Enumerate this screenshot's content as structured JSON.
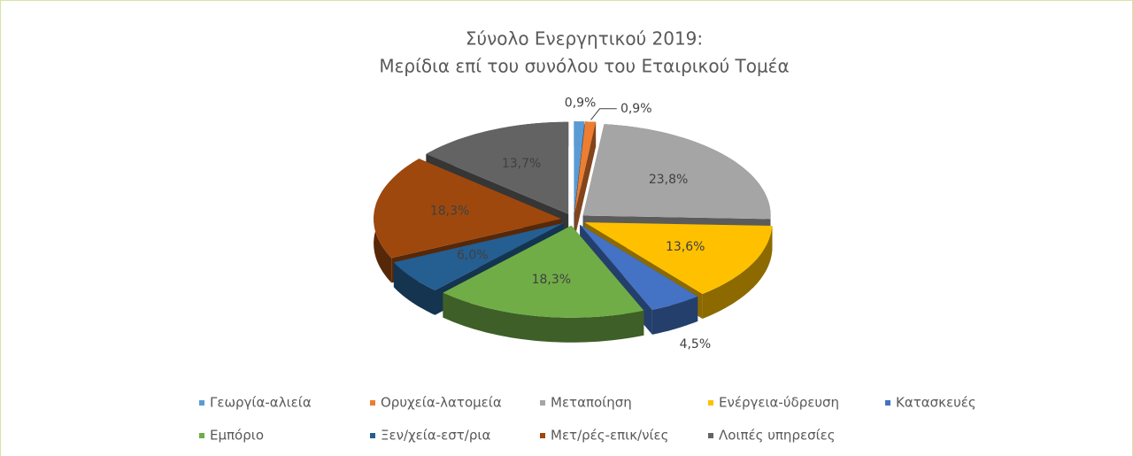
{
  "chart_data": {
    "type": "pie3d",
    "title": [
      "Σύνολο Ενεργητικού 2019:",
      "Μερίδια επί του συνόλου του Εταιρικού Τομέα"
    ],
    "categories": [
      "Γεωργία-αλιεία",
      "Ορυχεία-λατομεία",
      "Μεταποίηση",
      "Ενέργεια-ύδρευση",
      "Κατασκευές",
      "Εμπόριο",
      "Ξεν/χεία-εστ/ρια",
      "Μετ/ρές-επικ/νίες",
      "Λοιπές υπηρεσίες"
    ],
    "values": [
      0.9,
      0.9,
      23.8,
      13.6,
      4.5,
      18.3,
      6.0,
      18.3,
      13.7
    ],
    "value_labels": [
      "0,9%",
      "0,9%",
      "23,8%",
      "13,6%",
      "4,5%",
      "18,3%",
      "6,0%",
      "18,3%",
      "13,7%"
    ],
    "colors": [
      "#5b9bd5",
      "#ed7d31",
      "#a5a5a5",
      "#ffc000",
      "#4472c4",
      "#70ad47",
      "#255e91",
      "#9e480e",
      "#636363"
    ],
    "legend": "bottom"
  }
}
